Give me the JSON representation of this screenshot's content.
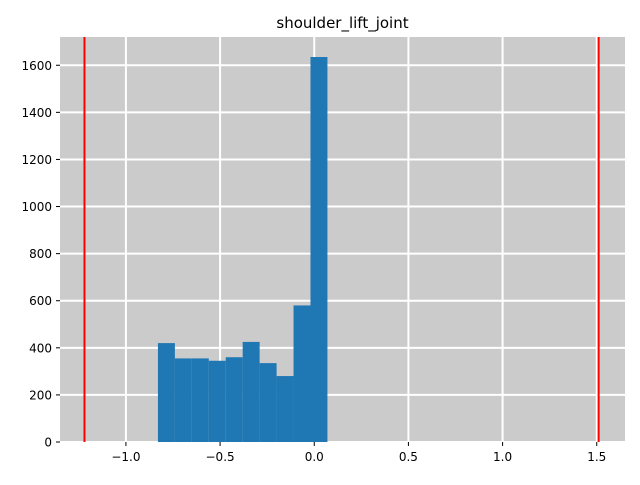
{
  "chart_data": {
    "type": "histogram",
    "title": "shoulder_lift_joint",
    "xlabel": "",
    "ylabel": "",
    "xlim": [
      -1.35,
      1.65
    ],
    "ylim": [
      0,
      1720
    ],
    "grid": true,
    "x_ticks": [
      -1.0,
      -0.5,
      0.0,
      0.5,
      1.0,
      1.5
    ],
    "x_tick_labels": [
      "−1.0",
      "−0.5",
      "0.0",
      "0.5",
      "1.0",
      "1.5"
    ],
    "y_ticks": [
      0,
      200,
      400,
      600,
      800,
      1000,
      1200,
      1400,
      1600
    ],
    "y_tick_labels": [
      "0",
      "200",
      "400",
      "600",
      "800",
      "1000",
      "1200",
      "1400",
      "1600"
    ],
    "bins": [
      {
        "x0": -0.83,
        "x1": -0.74,
        "count": 420
      },
      {
        "x0": -0.74,
        "x1": -0.65,
        "count": 355
      },
      {
        "x0": -0.65,
        "x1": -0.56,
        "count": 355
      },
      {
        "x0": -0.56,
        "x1": -0.47,
        "count": 345
      },
      {
        "x0": -0.47,
        "x1": -0.38,
        "count": 360
      },
      {
        "x0": -0.38,
        "x1": -0.29,
        "count": 425
      },
      {
        "x0": -0.29,
        "x1": -0.2,
        "count": 335
      },
      {
        "x0": -0.2,
        "x1": -0.11,
        "count": 280
      },
      {
        "x0": -0.11,
        "x1": -0.02,
        "count": 580
      },
      {
        "x0": -0.02,
        "x1": 0.07,
        "count": 1635
      }
    ],
    "limit_lines": [
      -1.22,
      1.51
    ],
    "colors": {
      "bars": "#1f77b4",
      "limit_lines": "#ff0000",
      "plot_background": "#cbcbcb",
      "grid": "#ffffff"
    }
  }
}
